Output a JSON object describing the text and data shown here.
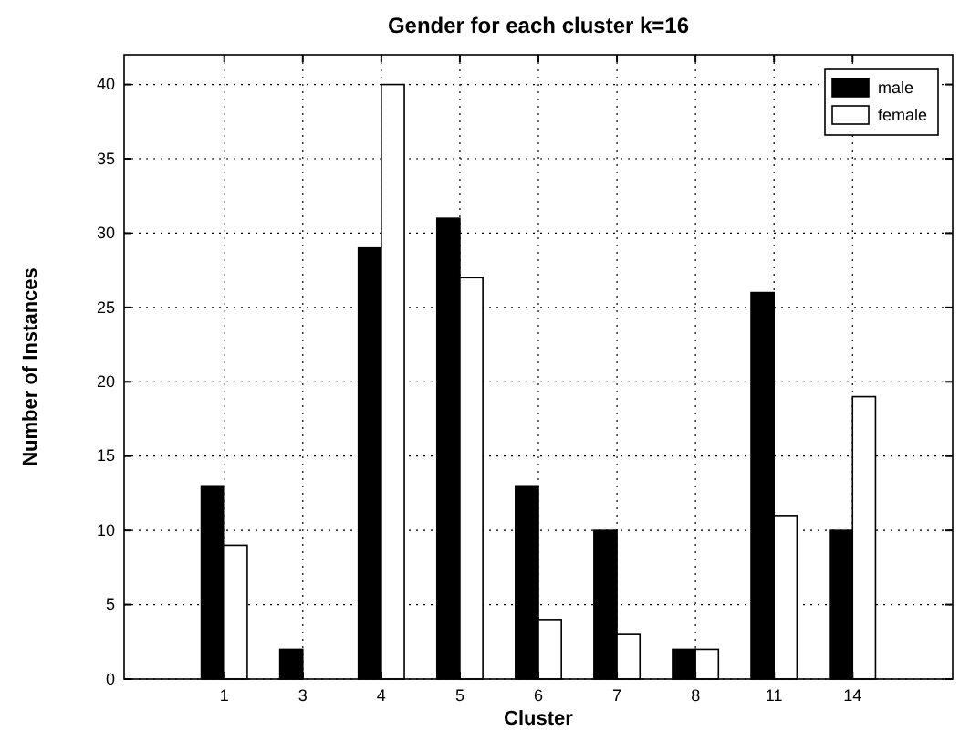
{
  "chart_data": {
    "type": "bar",
    "title": "Gender for each cluster k=16",
    "xlabel": "Cluster",
    "ylabel": "Number of Instances",
    "categories": [
      "1",
      "3",
      "4",
      "5",
      "6",
      "7",
      "8",
      "11",
      "14"
    ],
    "series": [
      {
        "name": "male",
        "color": "#000000",
        "values": [
          13,
          2,
          29,
          31,
          13,
          10,
          2,
          26,
          10
        ]
      },
      {
        "name": "female",
        "color": "#ffffff",
        "values": [
          9,
          0,
          40,
          27,
          4,
          3,
          2,
          11,
          19
        ]
      }
    ],
    "ylim": [
      0,
      42
    ],
    "yticks": [
      0,
      5,
      10,
      15,
      20,
      25,
      30,
      35,
      40
    ],
    "grid": true,
    "legend": "top right"
  }
}
